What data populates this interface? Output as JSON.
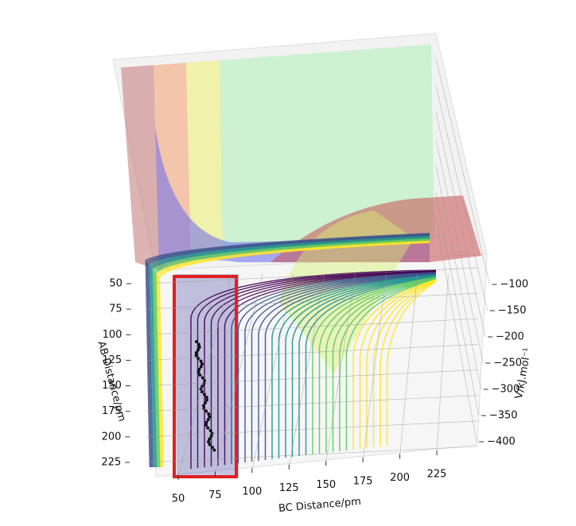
{
  "chart_data": {
    "type": "surface3d",
    "xlabel": "BC Distance/pm",
    "ylabel": "AB Distance/pm",
    "zlabel": "V/kJ.mol⁻¹",
    "xlim": [
      40,
      240
    ],
    "xticks": [
      50,
      75,
      100,
      125,
      150,
      175,
      200,
      225
    ],
    "ylim": [
      40,
      240
    ],
    "yticks": [
      50,
      75,
      100,
      125,
      150,
      175,
      200,
      225
    ],
    "zlim": [
      -80,
      -420
    ],
    "zticks": [
      {
        "value": -100,
        "label": "−100"
      },
      {
        "value": -150,
        "label": "−150"
      },
      {
        "value": -200,
        "label": "−200"
      },
      {
        "value": -250,
        "label": "−250"
      },
      {
        "value": -300,
        "label": "−300"
      },
      {
        "value": -350,
        "label": "−350"
      },
      {
        "value": -400,
        "label": "−400"
      }
    ],
    "grid": true
  }
}
